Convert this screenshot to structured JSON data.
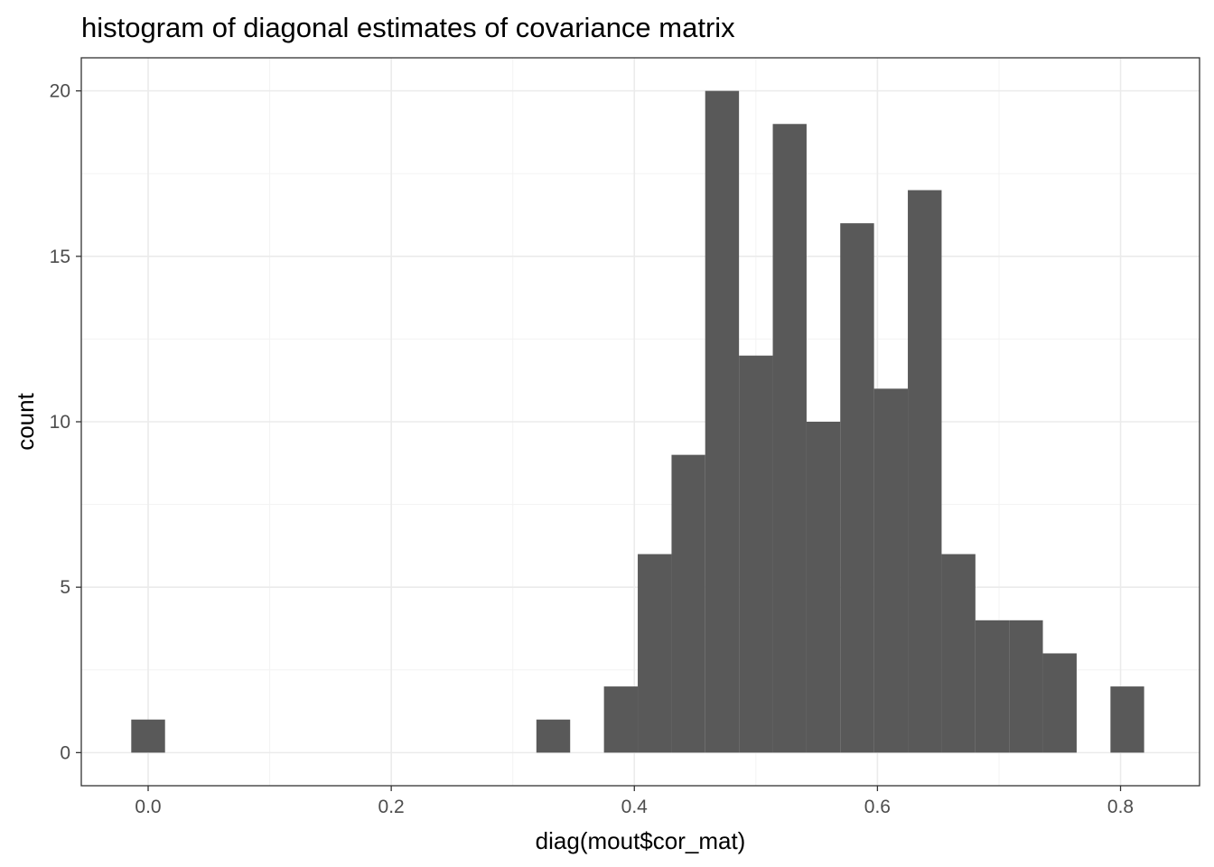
{
  "chart_data": {
    "type": "bar",
    "title": "histogram of diagonal estimates of covariance matrix",
    "xlabel": "diag(mout$cor_mat)",
    "ylabel": "count",
    "xlim": [
      -0.055,
      0.865
    ],
    "ylim": [
      -1.0,
      21.0
    ],
    "x_ticks": [
      0.0,
      0.2,
      0.4,
      0.6,
      0.8
    ],
    "x_tick_labels": [
      "0.0",
      "0.2",
      "0.4",
      "0.6",
      "0.8"
    ],
    "y_ticks": [
      0,
      5,
      10,
      15,
      20
    ],
    "y_tick_labels": [
      "0",
      "5",
      "10",
      "15",
      "20"
    ],
    "bin_width": 0.0278,
    "bins": [
      {
        "x_start": -0.0139,
        "x_end": 0.0139,
        "count": 1
      },
      {
        "x_start": 0.3194,
        "x_end": 0.3472,
        "count": 1
      },
      {
        "x_start": 0.375,
        "x_end": 0.4028,
        "count": 2
      },
      {
        "x_start": 0.4028,
        "x_end": 0.4306,
        "count": 6
      },
      {
        "x_start": 0.4306,
        "x_end": 0.4583,
        "count": 9
      },
      {
        "x_start": 0.4583,
        "x_end": 0.4861,
        "count": 20
      },
      {
        "x_start": 0.4861,
        "x_end": 0.5139,
        "count": 12
      },
      {
        "x_start": 0.5139,
        "x_end": 0.5417,
        "count": 19
      },
      {
        "x_start": 0.5417,
        "x_end": 0.5694,
        "count": 10
      },
      {
        "x_start": 0.5694,
        "x_end": 0.5972,
        "count": 16
      },
      {
        "x_start": 0.5972,
        "x_end": 0.625,
        "count": 11
      },
      {
        "x_start": 0.625,
        "x_end": 0.6528,
        "count": 17
      },
      {
        "x_start": 0.6528,
        "x_end": 0.6806,
        "count": 6
      },
      {
        "x_start": 0.6806,
        "x_end": 0.7083,
        "count": 4
      },
      {
        "x_start": 0.7083,
        "x_end": 0.7361,
        "count": 4
      },
      {
        "x_start": 0.7361,
        "x_end": 0.7639,
        "count": 3
      },
      {
        "x_start": 0.7917,
        "x_end": 0.8194,
        "count": 2
      }
    ],
    "grid": true,
    "colors": {
      "bar_fill": "#595959",
      "panel_border": "#333333",
      "grid_major": "#ebebeb",
      "grid_minor": "#f3f3f3",
      "tick_text": "#4d4d4d",
      "tick_mark": "#333333",
      "background": "#ffffff"
    }
  }
}
